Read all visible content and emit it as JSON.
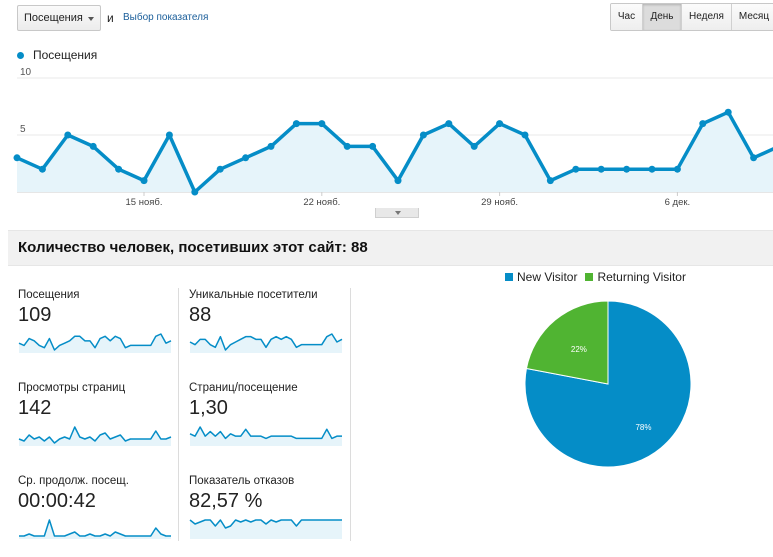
{
  "toolbar": {
    "metric_select": "Посещения",
    "and_text": "и",
    "pick_metric_link": "Выбор показателя",
    "periods": [
      "Час",
      "День",
      "Неделя",
      "Месяц"
    ],
    "active_period": "День"
  },
  "main_chart": {
    "legend": "Посещения",
    "y_ticks": [
      "10",
      "5"
    ],
    "x_labels": [
      "15 нояб.",
      "22 нояб.",
      "29 нояб.",
      "6 дек."
    ]
  },
  "colors": {
    "line": "#058dc7",
    "area": "#e6f4fa",
    "new_visitor": "#058dc7",
    "returning_visitor": "#50b432"
  },
  "chart_data": [
    {
      "type": "area",
      "series": [
        {
          "name": "Посещения",
          "values": [
            3,
            2,
            5,
            4,
            2,
            1,
            5,
            0,
            2,
            3,
            4,
            6,
            6,
            4,
            4,
            1,
            5,
            6,
            4,
            6,
            5,
            1,
            2,
            2,
            2,
            2,
            2,
            6,
            7,
            3,
            4
          ]
        }
      ],
      "x_labels": [
        "15 нояб.",
        "22 нояб.",
        "29 нояб.",
        "6 дек."
      ],
      "ylim": [
        0,
        10
      ],
      "grid": true
    },
    {
      "type": "pie",
      "categories": [
        "New Visitor",
        "Returning Visitor"
      ],
      "values": [
        78,
        22
      ],
      "labels": [
        "78%",
        "22%"
      ]
    }
  ],
  "summary": {
    "title": "Количество человек, посетивших этот сайт: 88"
  },
  "metrics": [
    {
      "label": "Посещения",
      "value": "109",
      "spark": [
        3,
        2,
        5,
        4,
        2,
        1,
        5,
        0,
        2,
        3,
        4,
        6,
        6,
        4,
        4,
        1,
        5,
        6,
        4,
        6,
        5,
        1,
        2,
        2,
        2,
        2,
        2,
        6,
        7,
        3,
        4
      ]
    },
    {
      "label": "Уникальные посетители",
      "value": "88",
      "spark": [
        3,
        2,
        4,
        4,
        2,
        1,
        5,
        0,
        2,
        3,
        4,
        5,
        5,
        4,
        4,
        1,
        4,
        5,
        4,
        5,
        4,
        1,
        2,
        2,
        2,
        2,
        2,
        5,
        6,
        3,
        4
      ]
    },
    {
      "label": "Просмотры страниц",
      "value": "142",
      "spark": [
        2,
        1,
        4,
        2,
        3,
        1,
        3,
        0,
        2,
        3,
        2,
        8,
        3,
        2,
        3,
        1,
        4,
        5,
        2,
        3,
        4,
        1,
        2,
        2,
        2,
        2,
        2,
        6,
        2,
        2,
        3
      ]
    },
    {
      "label": "Страниц/посещение",
      "value": "1,30",
      "spark": [
        4,
        3,
        7,
        3,
        5,
        3,
        5,
        2,
        4,
        3,
        3,
        6,
        3,
        3,
        3,
        2,
        3,
        3,
        3,
        3,
        3,
        2,
        2,
        2,
        2,
        2,
        2,
        6,
        2,
        3,
        3
      ]
    },
    {
      "label": "Ср. продолж. посещ.",
      "value": "00:00:42",
      "spark": [
        0,
        0,
        1,
        0,
        0,
        0,
        8,
        0,
        0,
        0,
        1,
        2,
        0,
        0,
        1,
        0,
        0,
        1,
        0,
        2,
        1,
        0,
        0,
        0,
        0,
        0,
        0,
        4,
        1,
        0,
        0
      ]
    },
    {
      "label": "Показатель отказов",
      "value": "82,57 %",
      "spark": [
        8,
        6,
        7,
        8,
        8,
        5,
        8,
        4,
        5,
        8,
        7,
        8,
        7,
        8,
        8,
        6,
        8,
        7,
        8,
        8,
        8,
        5,
        8,
        8,
        8,
        8,
        8,
        8,
        8,
        8,
        8
      ]
    }
  ],
  "pie": {
    "legend": [
      "New Visitor",
      "Returning Visitor"
    ]
  }
}
